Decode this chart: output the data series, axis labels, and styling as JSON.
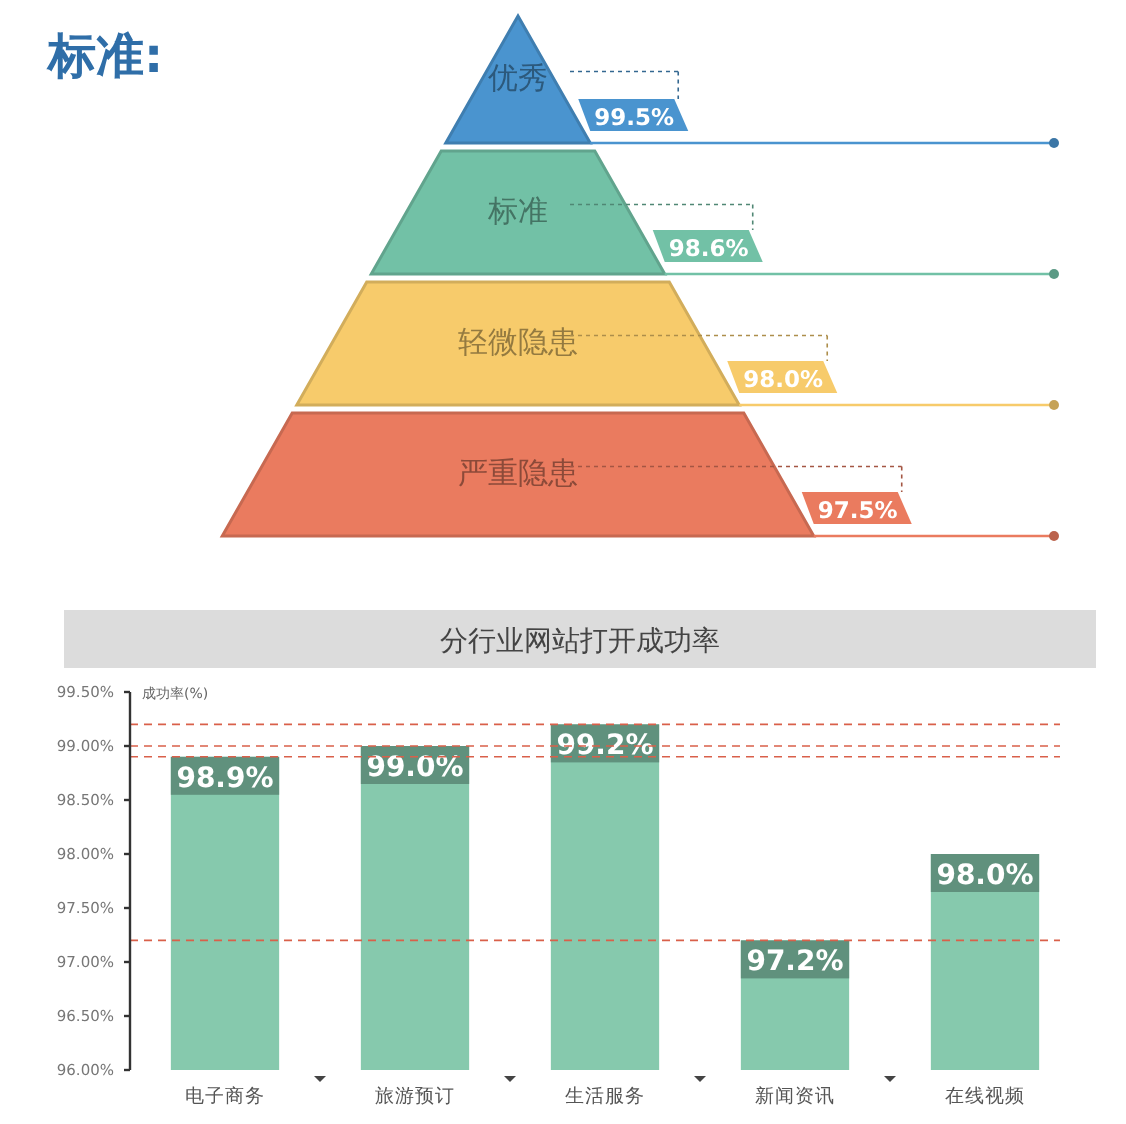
{
  "chart_data": [
    {
      "type": "other",
      "title": "标准:",
      "categories": [
        "优秀",
        "标准",
        "轻微隐患",
        "严重隐患"
      ],
      "values": [
        99.5,
        98.6,
        98.0,
        97.5
      ],
      "value_labels": [
        "99.5%",
        "98.6%",
        "98.0%",
        "97.5%"
      ],
      "colors": [
        "#4a94cf",
        "#72c1a6",
        "#f7cb6b",
        "#ea7b5f"
      ]
    },
    {
      "type": "bar",
      "title": "分行业网站打开成功率",
      "ylabel": "成功率(%)",
      "categories": [
        "电子商务",
        "旅游预订",
        "生活服务",
        "新闻资讯",
        "在线视频"
      ],
      "values": [
        98.9,
        99.0,
        99.2,
        97.2,
        98.0
      ],
      "value_labels": [
        "98.9%",
        "99.0%",
        "99.2%",
        "97.2%",
        "98.0%"
      ],
      "color": "#86c9ad",
      "ylim": [
        96,
        99.5
      ],
      "yticks": [
        {
          "value": 96,
          "label": "96.00%"
        },
        {
          "value": 96.5,
          "label": "96.50%"
        },
        {
          "value": 97,
          "label": "97.00%"
        },
        {
          "value": 97.5,
          "label": "97.50%"
        },
        {
          "value": 98,
          "label": "98.00%"
        },
        {
          "value": 98.5,
          "label": "98.50%"
        },
        {
          "value": 99,
          "label": "99.00%"
        },
        {
          "value": 99.5,
          "label": "99.50%"
        }
      ],
      "ref_lines": [
        {
          "axis": "y",
          "value": 99.2,
          "color": "#d9604a",
          "line_style": "dashed"
        },
        {
          "axis": "y",
          "value": 99.0,
          "color": "#d9604a",
          "line_style": "dashed"
        },
        {
          "axis": "y",
          "value": 98.9,
          "color": "#d9604a",
          "line_style": "dashed"
        },
        {
          "axis": "y",
          "value": 97.2,
          "color": "#d9604a",
          "line_style": "dashed"
        }
      ],
      "grid": false
    }
  ]
}
